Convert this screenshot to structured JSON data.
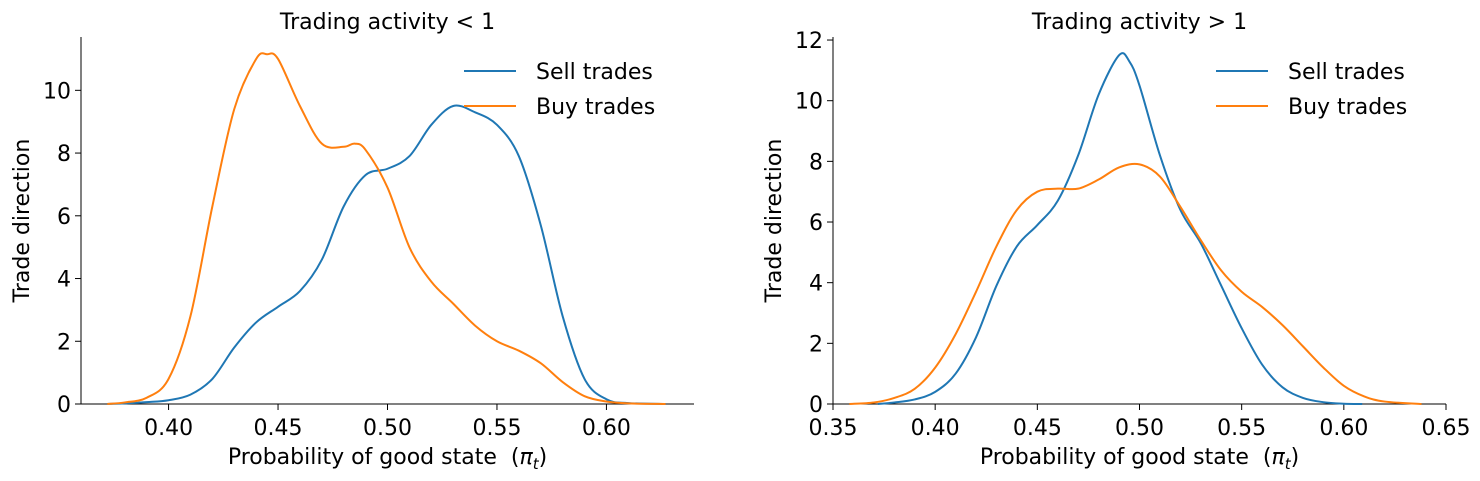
{
  "chart_data": [
    {
      "type": "line",
      "title": "Trading activity < 1",
      "xlabel": "Probability of good state",
      "xlabel_symbol": "π",
      "xlabel_subscript": "t",
      "ylabel": "Trade direction",
      "xlim": [
        0.36,
        0.64
      ],
      "ylim": [
        0,
        11.7
      ],
      "xticks": [
        "0.40",
        "0.45",
        "0.50",
        "0.55",
        "0.60"
      ],
      "yticks": [
        "0",
        "2",
        "4",
        "6",
        "8",
        "10"
      ],
      "legend_position": "upper-right",
      "grid": false,
      "series": [
        {
          "name": "Sell trades",
          "color": "#1f77b4",
          "x": [
            0.372,
            0.38,
            0.39,
            0.4,
            0.41,
            0.42,
            0.43,
            0.44,
            0.45,
            0.46,
            0.47,
            0.48,
            0.49,
            0.5,
            0.51,
            0.52,
            0.53,
            0.54,
            0.55,
            0.56,
            0.57,
            0.58,
            0.59,
            0.6,
            0.61,
            0.627
          ],
          "y": [
            0.0,
            0.02,
            0.06,
            0.12,
            0.3,
            0.8,
            1.8,
            2.6,
            3.1,
            3.6,
            4.6,
            6.3,
            7.3,
            7.5,
            7.9,
            8.9,
            9.5,
            9.3,
            8.9,
            7.9,
            5.7,
            2.8,
            0.8,
            0.15,
            0.03,
            0.0
          ]
        },
        {
          "name": "Buy trades",
          "color": "#ff7f0e",
          "x": [
            0.372,
            0.38,
            0.39,
            0.4,
            0.41,
            0.42,
            0.43,
            0.44,
            0.445,
            0.45,
            0.46,
            0.47,
            0.48,
            0.485,
            0.49,
            0.5,
            0.51,
            0.52,
            0.53,
            0.54,
            0.55,
            0.56,
            0.57,
            0.58,
            0.59,
            0.6,
            0.61,
            0.627
          ],
          "y": [
            0.0,
            0.05,
            0.2,
            0.8,
            2.8,
            6.3,
            9.4,
            11.0,
            11.15,
            11.0,
            9.5,
            8.3,
            8.2,
            8.3,
            8.1,
            6.9,
            5.0,
            3.9,
            3.2,
            2.5,
            2.0,
            1.7,
            1.3,
            0.7,
            0.25,
            0.08,
            0.02,
            0.0
          ]
        }
      ]
    },
    {
      "type": "line",
      "title": "Trading activity > 1",
      "xlabel": "Probability of good state",
      "xlabel_symbol": "π",
      "xlabel_subscript": "t",
      "ylabel": "Trade direction",
      "xlim": [
        0.35,
        0.65
      ],
      "ylim": [
        0,
        12.1
      ],
      "xticks": [
        "0.35",
        "0.40",
        "0.45",
        "0.50",
        "0.55",
        "0.60",
        "0.65"
      ],
      "yticks": [
        "0",
        "2",
        "4",
        "6",
        "8",
        "10",
        "12"
      ],
      "legend_position": "upper-right",
      "grid": false,
      "series": [
        {
          "name": "Sell trades",
          "color": "#1f77b4",
          "x": [
            0.372,
            0.38,
            0.39,
            0.4,
            0.41,
            0.42,
            0.43,
            0.44,
            0.45,
            0.46,
            0.47,
            0.48,
            0.49,
            0.495,
            0.5,
            0.51,
            0.52,
            0.53,
            0.54,
            0.55,
            0.56,
            0.57,
            0.58,
            0.59,
            0.6,
            0.609
          ],
          "y": [
            0.0,
            0.05,
            0.15,
            0.4,
            1.0,
            2.2,
            3.9,
            5.2,
            5.9,
            6.7,
            8.2,
            10.2,
            11.5,
            11.3,
            10.5,
            8.2,
            6.4,
            5.3,
            3.9,
            2.5,
            1.3,
            0.55,
            0.2,
            0.06,
            0.01,
            0.0
          ]
        },
        {
          "name": "Buy trades",
          "color": "#ff7f0e",
          "x": [
            0.358,
            0.37,
            0.38,
            0.39,
            0.4,
            0.41,
            0.42,
            0.43,
            0.44,
            0.45,
            0.46,
            0.47,
            0.48,
            0.49,
            0.5,
            0.51,
            0.52,
            0.53,
            0.54,
            0.55,
            0.56,
            0.57,
            0.58,
            0.59,
            0.6,
            0.61,
            0.62,
            0.638
          ],
          "y": [
            0.0,
            0.05,
            0.2,
            0.5,
            1.2,
            2.3,
            3.7,
            5.2,
            6.4,
            7.0,
            7.1,
            7.1,
            7.4,
            7.8,
            7.9,
            7.5,
            6.5,
            5.4,
            4.4,
            3.7,
            3.2,
            2.6,
            1.9,
            1.2,
            0.6,
            0.25,
            0.08,
            0.0
          ]
        }
      ]
    }
  ]
}
